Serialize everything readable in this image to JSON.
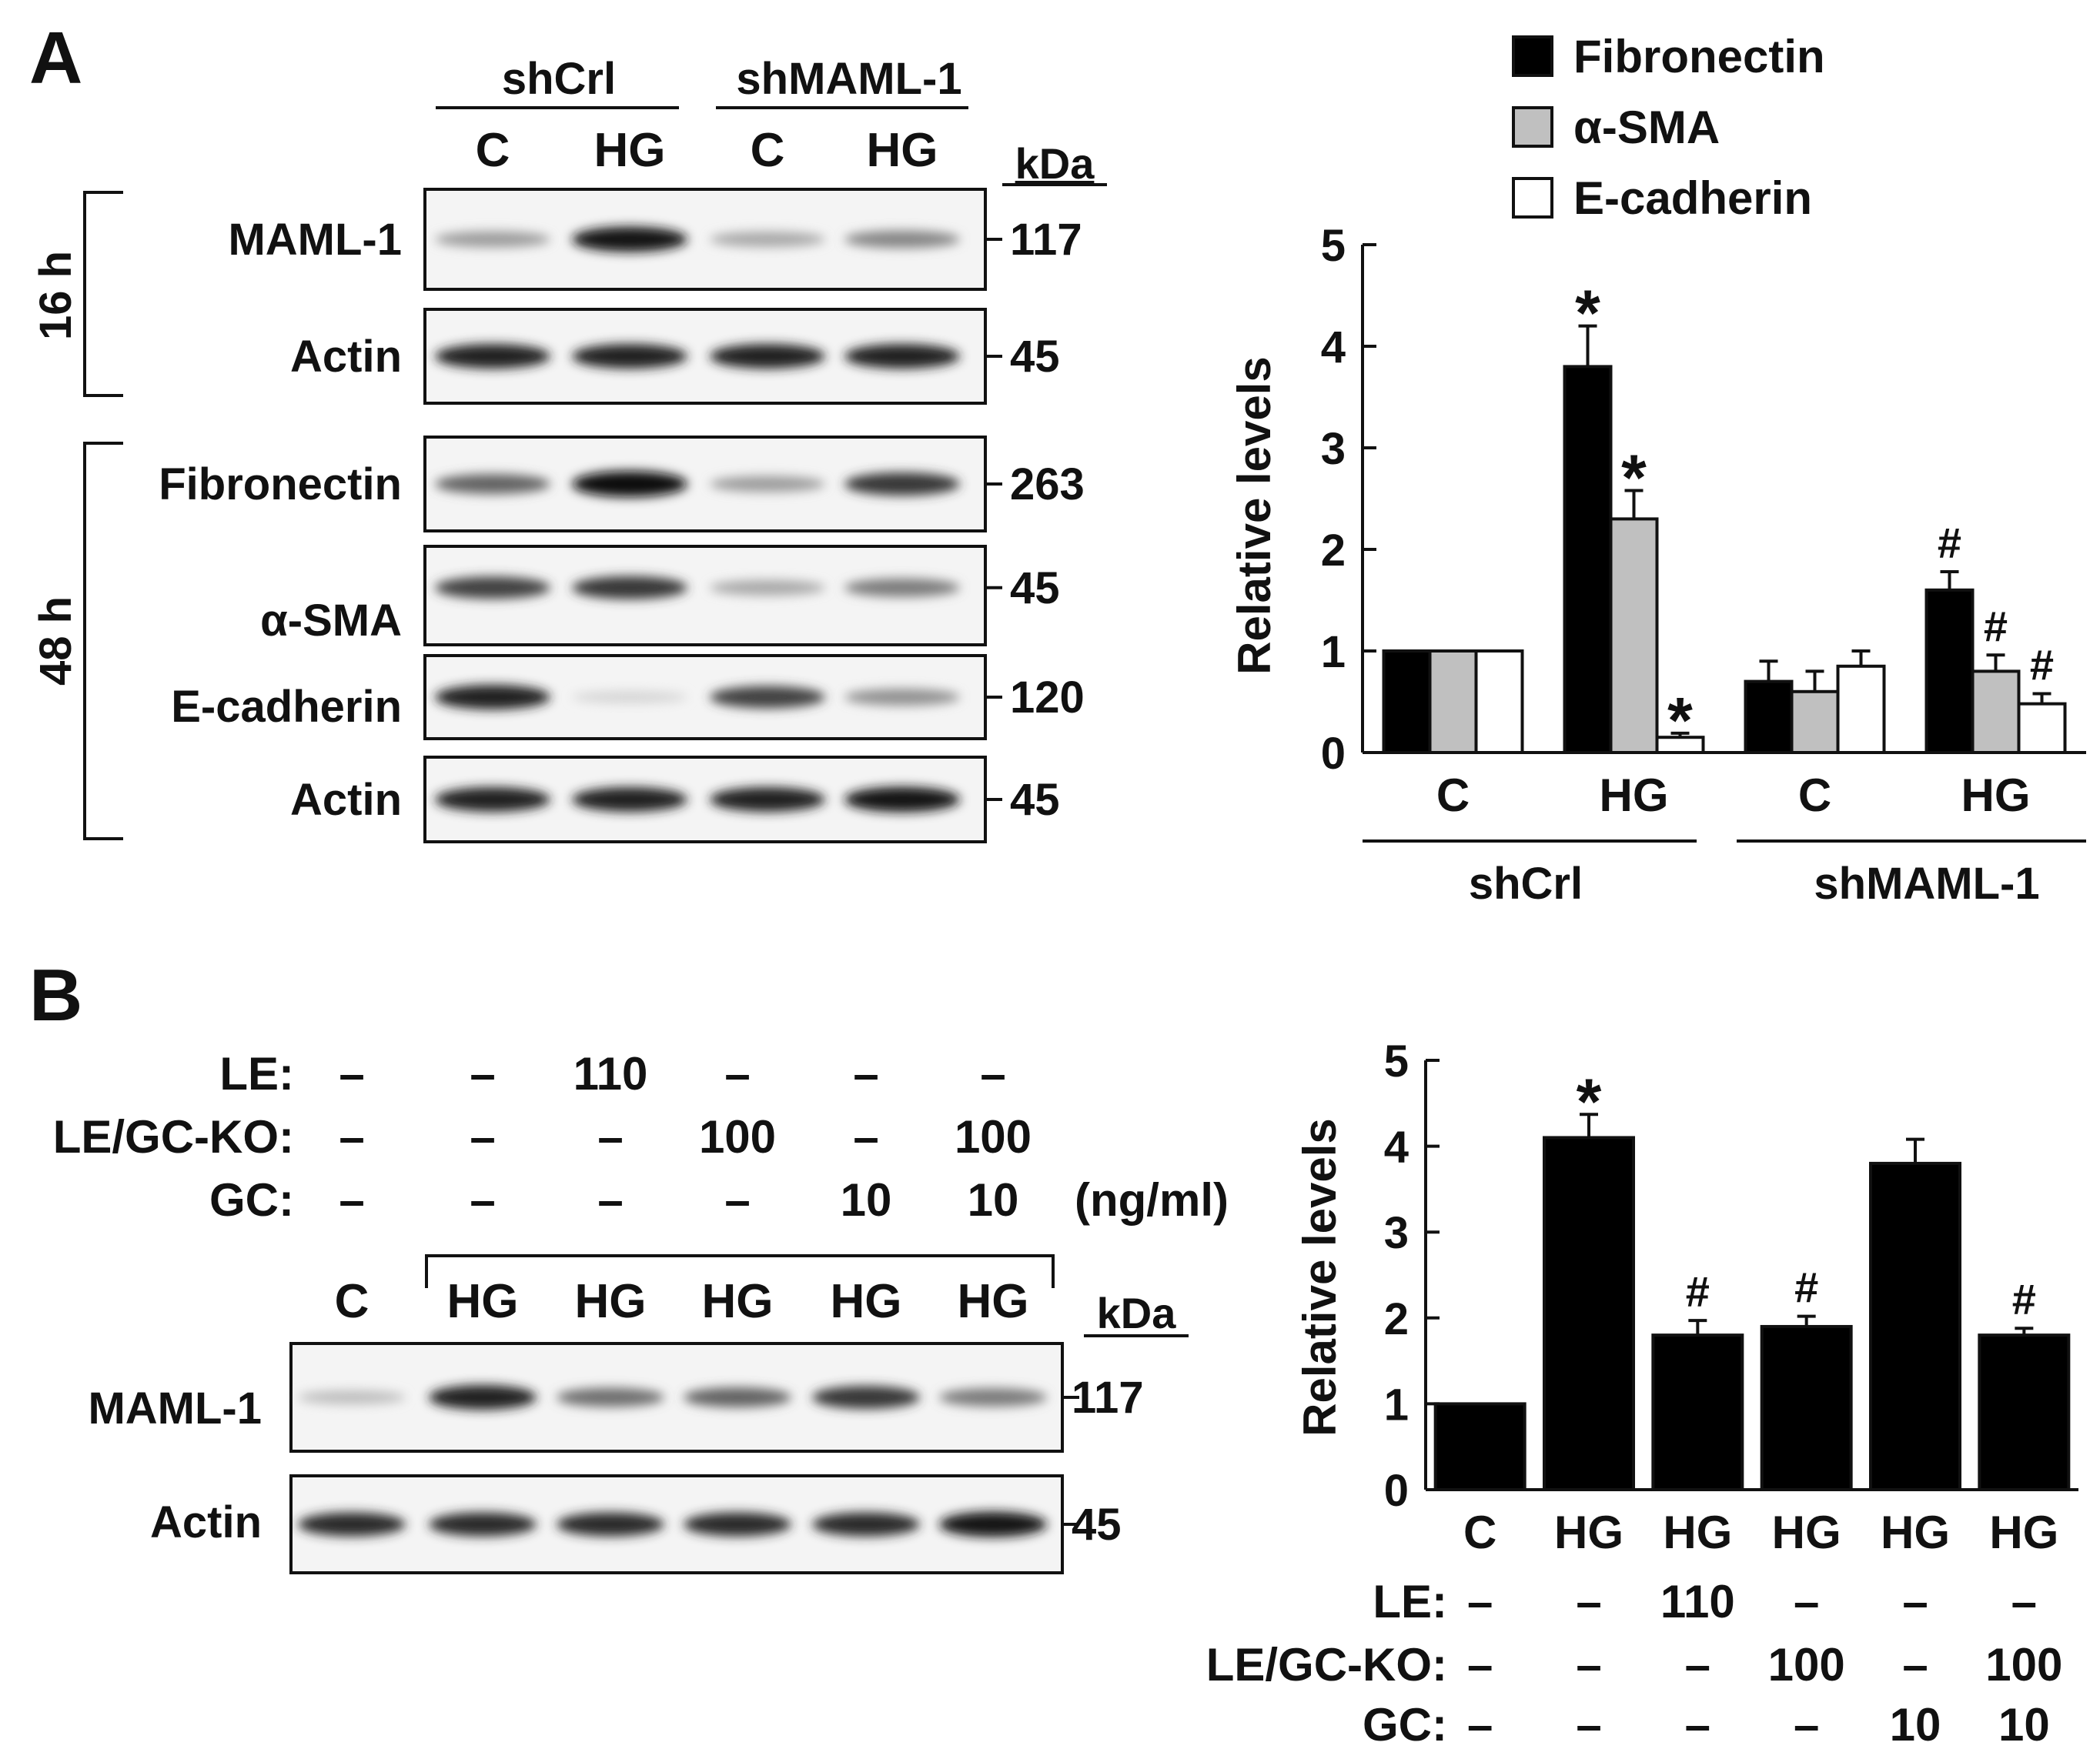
{
  "panelA": {
    "letter": "A",
    "blot": {
      "groups": [
        "shCrl",
        "shMAML-1"
      ],
      "lanes": [
        "C",
        "HG",
        "C",
        "HG"
      ],
      "kda_header": "kDa",
      "time_16": "16 h",
      "time_48": "48 h",
      "rows": [
        {
          "label": "MAML-1",
          "kda": "117",
          "band_strength": [
            0.35,
            0.95,
            0.3,
            0.45
          ]
        },
        {
          "label": "Actin",
          "kda": "45",
          "band_strength": [
            0.9,
            0.9,
            0.9,
            0.9
          ]
        },
        {
          "label": "Fibronectin",
          "kda": "263",
          "band_strength": [
            0.6,
            1.0,
            0.35,
            0.8
          ]
        },
        {
          "label": "α-SMA",
          "kda": "45",
          "band_strength": [
            0.75,
            0.8,
            0.3,
            0.5
          ]
        },
        {
          "label": "E-cadherin",
          "kda": "120",
          "band_strength": [
            0.9,
            0.1,
            0.75,
            0.4
          ]
        },
        {
          "label": "Actin",
          "kda": "45",
          "band_strength": [
            0.9,
            0.9,
            0.9,
            0.95
          ]
        }
      ]
    }
  },
  "chart_data": [
    {
      "type": "bar",
      "ylabel": "Relative levels",
      "ylim": [
        0,
        5
      ],
      "yticks": [
        "0",
        "1",
        "2",
        "3",
        "4",
        "5"
      ],
      "categories": [
        "C",
        "HG",
        "C",
        "HG"
      ],
      "groups": [
        "shCrl",
        "shMAML-1"
      ],
      "legend_position": "top",
      "series": [
        {
          "name": "Fibronectin",
          "color": "#000000",
          "values": [
            1.0,
            3.8,
            0.7,
            1.6
          ],
          "errors": [
            0,
            0.4,
            0.2,
            0.18
          ],
          "marks": [
            "",
            "*",
            "",
            "#"
          ]
        },
        {
          "name": "α-SMA",
          "color": "#c0c0c0",
          "values": [
            1.0,
            2.3,
            0.6,
            0.8
          ],
          "errors": [
            0,
            0.28,
            0.2,
            0.16
          ],
          "marks": [
            "",
            "*",
            "",
            "#"
          ]
        },
        {
          "name": "E-cadherin",
          "color": "#ffffff",
          "values": [
            1.0,
            0.15,
            0.85,
            0.48
          ],
          "errors": [
            0,
            0.04,
            0.15,
            0.1
          ],
          "marks": [
            "",
            "*",
            "",
            "#"
          ]
        }
      ]
    },
    {
      "type": "bar",
      "ylabel": "Relative levels",
      "ylim": [
        0,
        5
      ],
      "yticks": [
        "0",
        "1",
        "2",
        "3",
        "4",
        "5"
      ],
      "categories": [
        "C",
        "HG",
        "HG",
        "HG",
        "HG",
        "HG"
      ],
      "series": [
        {
          "color": "#000000",
          "values": [
            1.0,
            4.1,
            1.8,
            1.9,
            3.8,
            1.8
          ],
          "errors": [
            0,
            0.27,
            0.17,
            0.12,
            0.28,
            0.08
          ],
          "marks": [
            "",
            "*",
            "#",
            "#",
            "",
            "#"
          ]
        }
      ],
      "conditions": [
        {
          "label": "LE:",
          "values": [
            "–",
            "–",
            "110",
            "–",
            "–",
            "–"
          ]
        },
        {
          "label": "LE/GC-KO:",
          "values": [
            "–",
            "–",
            "–",
            "100",
            "–",
            "100"
          ]
        },
        {
          "label": "GC:",
          "values": [
            "–",
            "–",
            "–",
            "–",
            "10",
            "10"
          ]
        }
      ]
    }
  ],
  "panelB": {
    "letter": "B",
    "conditions": [
      {
        "label": "LE:",
        "values": [
          "–",
          "–",
          "110",
          "–",
          "–",
          "–"
        ]
      },
      {
        "label": "LE/GC-KO:",
        "values": [
          "–",
          "–",
          "–",
          "100",
          "–",
          "100"
        ]
      },
      {
        "label": "GC:",
        "values": [
          "–",
          "–",
          "–",
          "–",
          "10",
          "10"
        ]
      }
    ],
    "unit": "(ng/ml)",
    "blot": {
      "lanes": [
        "C",
        "HG",
        "HG",
        "HG",
        "HG",
        "HG"
      ],
      "kda_header": "kDa",
      "rows": [
        {
          "label": "MAML-1",
          "kda": "117",
          "band_strength": [
            0.2,
            0.9,
            0.55,
            0.6,
            0.8,
            0.5
          ]
        },
        {
          "label": "Actin",
          "kda": "45",
          "band_strength": [
            0.85,
            0.85,
            0.85,
            0.85,
            0.85,
            0.95
          ]
        }
      ]
    }
  }
}
